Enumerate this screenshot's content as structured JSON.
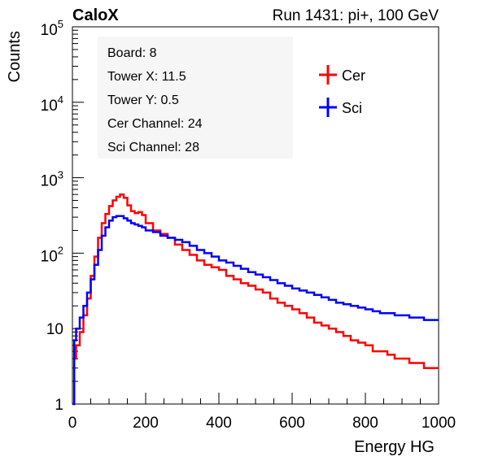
{
  "chart_data": {
    "type": "line",
    "title_left": "CaloX",
    "title_right": "Run 1431: pi+, 100 GeV",
    "xlabel": "Energy HG",
    "ylabel": "Counts",
    "xlim": [
      0,
      1000
    ],
    "ylim": [
      1,
      100000
    ],
    "y_scale": "log",
    "x_ticks": [
      "0",
      "200",
      "400",
      "600",
      "800",
      "1000"
    ],
    "y_ticks": [
      {
        "value": 1,
        "base": "1",
        "exp": ""
      },
      {
        "value": 10,
        "base": "10",
        "exp": ""
      },
      {
        "value": 100,
        "base": "10",
        "exp": "2"
      },
      {
        "value": 1000,
        "base": "10",
        "exp": "3"
      },
      {
        "value": 10000,
        "base": "10",
        "exp": "4"
      },
      {
        "value": 100000,
        "base": "10",
        "exp": "5"
      }
    ],
    "info_box": [
      "Board: 8",
      "Tower X: 11.5",
      "Tower Y: 0.5",
      "Cer Channel: 24",
      "Sci Channel: 28"
    ],
    "legend_position": "top-right",
    "series": [
      {
        "name": "Cer",
        "color": "#ff0000",
        "x": [
          0,
          5,
          10,
          20,
          30,
          40,
          50,
          60,
          70,
          80,
          90,
          100,
          110,
          120,
          130,
          140,
          150,
          160,
          170,
          180,
          190,
          200,
          220,
          240,
          260,
          280,
          300,
          320,
          340,
          360,
          380,
          400,
          420,
          440,
          460,
          480,
          500,
          520,
          540,
          560,
          580,
          600,
          620,
          640,
          660,
          680,
          700,
          720,
          740,
          760,
          780,
          800,
          820,
          840,
          860,
          880,
          900,
          920,
          940,
          960,
          980,
          1000
        ],
        "y": [
          1,
          4,
          6,
          9,
          15,
          25,
          50,
          90,
          160,
          250,
          330,
          420,
          500,
          560,
          600,
          540,
          430,
          360,
          340,
          350,
          320,
          250,
          200,
          180,
          160,
          130,
          110,
          95,
          80,
          70,
          65,
          60,
          50,
          45,
          40,
          37,
          33,
          30,
          25,
          22,
          20,
          18,
          16,
          14,
          12,
          11,
          10,
          9,
          8,
          7,
          6.5,
          6,
          5,
          5,
          4.5,
          4,
          4,
          3.5,
          3.5,
          3,
          3,
          3
        ]
      },
      {
        "name": "Sci",
        "color": "#0000ff",
        "x": [
          0,
          5,
          10,
          20,
          30,
          40,
          50,
          60,
          70,
          80,
          90,
          100,
          110,
          120,
          130,
          140,
          150,
          160,
          170,
          180,
          190,
          200,
          220,
          240,
          260,
          280,
          300,
          320,
          340,
          360,
          380,
          400,
          420,
          440,
          460,
          480,
          500,
          520,
          540,
          560,
          580,
          600,
          620,
          640,
          660,
          680,
          700,
          720,
          740,
          760,
          780,
          800,
          820,
          840,
          860,
          880,
          900,
          920,
          940,
          960,
          980,
          1000
        ],
        "y": [
          1,
          7,
          10,
          14,
          20,
          30,
          45,
          70,
          110,
          170,
          220,
          270,
          300,
          310,
          310,
          290,
          270,
          250,
          240,
          230,
          220,
          200,
          190,
          170,
          160,
          150,
          140,
          125,
          110,
          100,
          90,
          80,
          75,
          68,
          62,
          56,
          52,
          48,
          44,
          40,
          37,
          34,
          32,
          30,
          28,
          26,
          24,
          22,
          21,
          20,
          19,
          18,
          17,
          16,
          16,
          15,
          15,
          14,
          14,
          13,
          13,
          13
        ]
      }
    ]
  }
}
